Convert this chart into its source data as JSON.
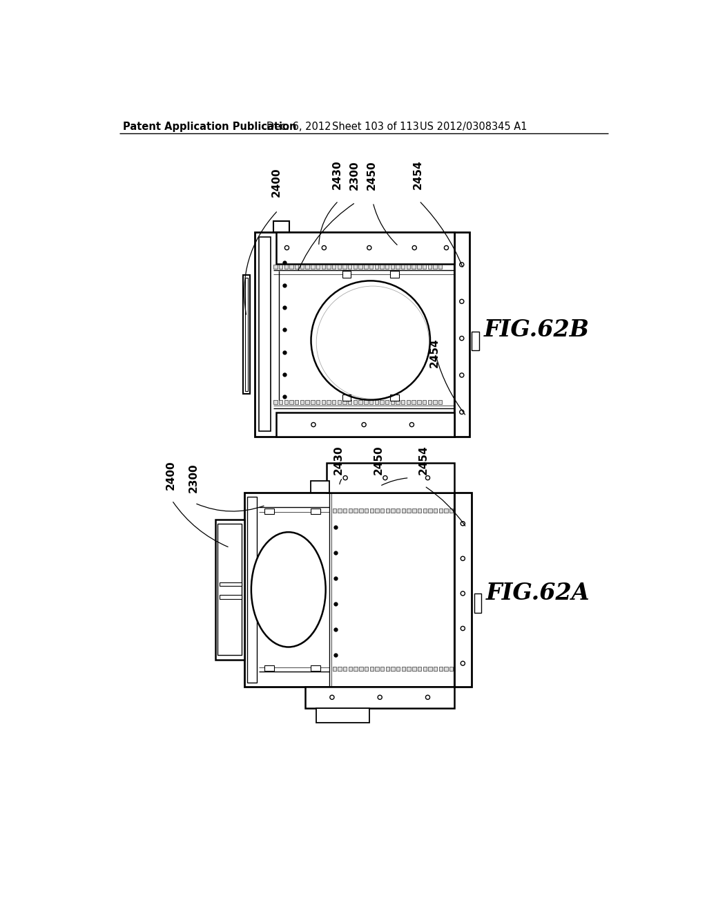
{
  "bg_color": "#ffffff",
  "header_text": "Patent Application Publication",
  "header_date": "Dec. 6, 2012",
  "header_sheet": "Sheet 103 of 113",
  "header_patent": "US 2012/0308345 A1",
  "fig_b_label": "FIG.62B",
  "fig_a_label": "FIG.62A"
}
